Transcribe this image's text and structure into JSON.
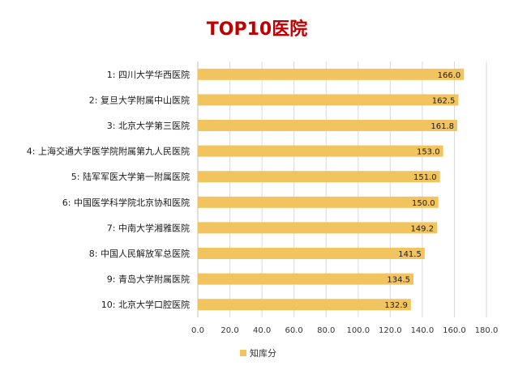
{
  "chart_data": {
    "type": "bar",
    "orientation": "horizontal",
    "title": "TOP10医院",
    "categories": [
      "1:  四川大学华西医院",
      "2:  复旦大学附属中山医院",
      "3:  北京大学第三医院",
      "4:  上海交通大学医学院附属第九人民医院",
      "5:  陆军军医大学第一附属医院",
      "6:  中国医学科学院北京协和医院",
      "7:  中南大学湘雅医院",
      "8:  中国人民解放军总医院",
      "9:  青岛大学附属医院",
      "10:  北京大学口腔医院"
    ],
    "series": [
      {
        "name": "知库分",
        "values": [
          166.0,
          162.5,
          161.8,
          153.0,
          151.0,
          150.0,
          149.2,
          141.5,
          134.5,
          132.9
        ],
        "labels": [
          "166.0",
          "162.5",
          "161.8",
          "153.0",
          "151.0",
          "150.0",
          "149.2",
          "141.5",
          "134.5",
          "132.9"
        ]
      }
    ],
    "xlim": [
      0,
      180
    ],
    "xticks": [
      "0.0",
      "20.0",
      "40.0",
      "60.0",
      "80.0",
      "100.0",
      "120.0",
      "140.0",
      "160.0",
      "180.0"
    ],
    "grid": "vertical",
    "legend_position": "bottom",
    "bar_color": "#f2c45f",
    "title_color": "#c00000"
  }
}
